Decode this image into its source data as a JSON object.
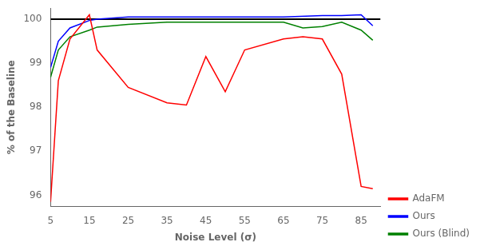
{
  "chart_data": {
    "type": "line",
    "xlabel": "Noise Level (σ)",
    "ylabel": "% of the Baseline",
    "xlim": [
      5,
      90
    ],
    "ylim": [
      95.75,
      100.25
    ],
    "xticks": [
      5,
      15,
      25,
      35,
      45,
      55,
      65,
      75,
      85
    ],
    "yticks": [
      96,
      97,
      98,
      99,
      100
    ],
    "grid": false,
    "legend": "lower right",
    "hline": {
      "value": 100,
      "color": "#000000"
    },
    "series": [
      {
        "name": "AdaFM",
        "color": "#ff0000",
        "x": [
          5,
          7,
          10,
          15,
          17,
          25,
          35,
          40,
          45,
          50,
          55,
          65,
          70,
          75,
          80,
          85,
          88
        ],
        "values": [
          95.85,
          98.6,
          99.55,
          100.1,
          99.3,
          98.45,
          98.1,
          98.05,
          99.15,
          98.35,
          99.3,
          99.55,
          99.6,
          99.55,
          98.75,
          96.2,
          96.15
        ]
      },
      {
        "name": "Ours",
        "color": "#0000ff",
        "x": [
          5,
          7,
          10,
          15,
          17,
          25,
          35,
          45,
          55,
          65,
          75,
          80,
          85,
          88
        ],
        "values": [
          98.9,
          99.5,
          99.8,
          99.97,
          100.0,
          100.05,
          100.05,
          100.05,
          100.05,
          100.05,
          100.08,
          100.08,
          100.1,
          99.85
        ]
      },
      {
        "name": "Ours (Blind)",
        "color": "#008000",
        "x": [
          5,
          7,
          10,
          15,
          17,
          25,
          35,
          45,
          55,
          65,
          70,
          75,
          80,
          85,
          88
        ],
        "values": [
          98.68,
          99.3,
          99.6,
          99.75,
          99.82,
          99.88,
          99.93,
          99.93,
          99.93,
          99.93,
          99.8,
          99.83,
          99.93,
          99.75,
          99.52
        ]
      }
    ]
  }
}
